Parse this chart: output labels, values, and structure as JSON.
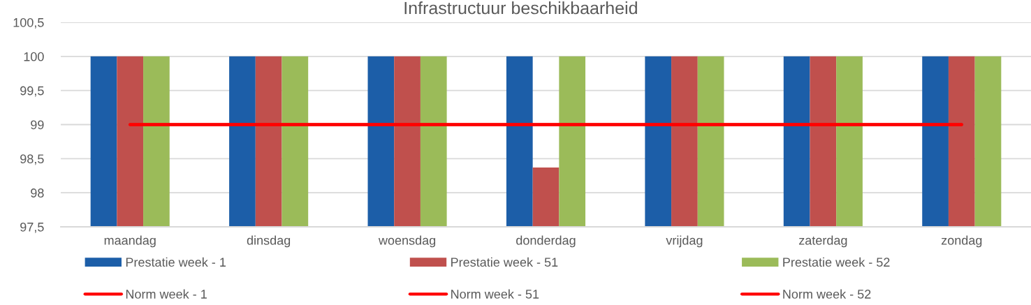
{
  "chart_data": {
    "type": "bar",
    "title": "Infrastructuur beschikbaarheid",
    "categories": [
      "maandag",
      "dinsdag",
      "woensdag",
      "donderdag",
      "vrijdag",
      "zaterdag",
      "zondag"
    ],
    "series": [
      {
        "name": "Prestatie week - 1",
        "color": "#1c5ea8",
        "values": [
          100,
          100,
          100,
          100,
          100,
          100,
          100
        ]
      },
      {
        "name": "Prestatie week - 51",
        "color": "#c0504d",
        "values": [
          100,
          100,
          100,
          98.37,
          100,
          100,
          100
        ]
      },
      {
        "name": "Prestatie week - 52",
        "color": "#9bbb59",
        "values": [
          100,
          100,
          100,
          100,
          100,
          100,
          100
        ]
      },
      {
        "name": "Norm week - 1",
        "type": "line",
        "color": "#ff0000",
        "values": [
          99,
          99,
          99,
          99,
          99,
          99,
          99
        ]
      },
      {
        "name": "Norm week - 51",
        "type": "line",
        "color": "#ff0000",
        "values": [
          99,
          99,
          99,
          99,
          99,
          99,
          99
        ]
      },
      {
        "name": "Norm week - 52",
        "type": "line",
        "color": "#ff0000",
        "values": [
          99,
          99,
          99,
          99,
          99,
          99,
          99
        ]
      }
    ],
    "ylim": [
      97.5,
      100.5
    ],
    "yticks": [
      {
        "value": 97.5,
        "label": "97,5"
      },
      98,
      {
        "value": 98.5,
        "label": "98,5"
      },
      99,
      {
        "value": 99.5,
        "label": "99,5"
      },
      100,
      {
        "value": 100.5,
        "label": "100,5"
      }
    ],
    "grid": "y",
    "legend": "bottom"
  }
}
